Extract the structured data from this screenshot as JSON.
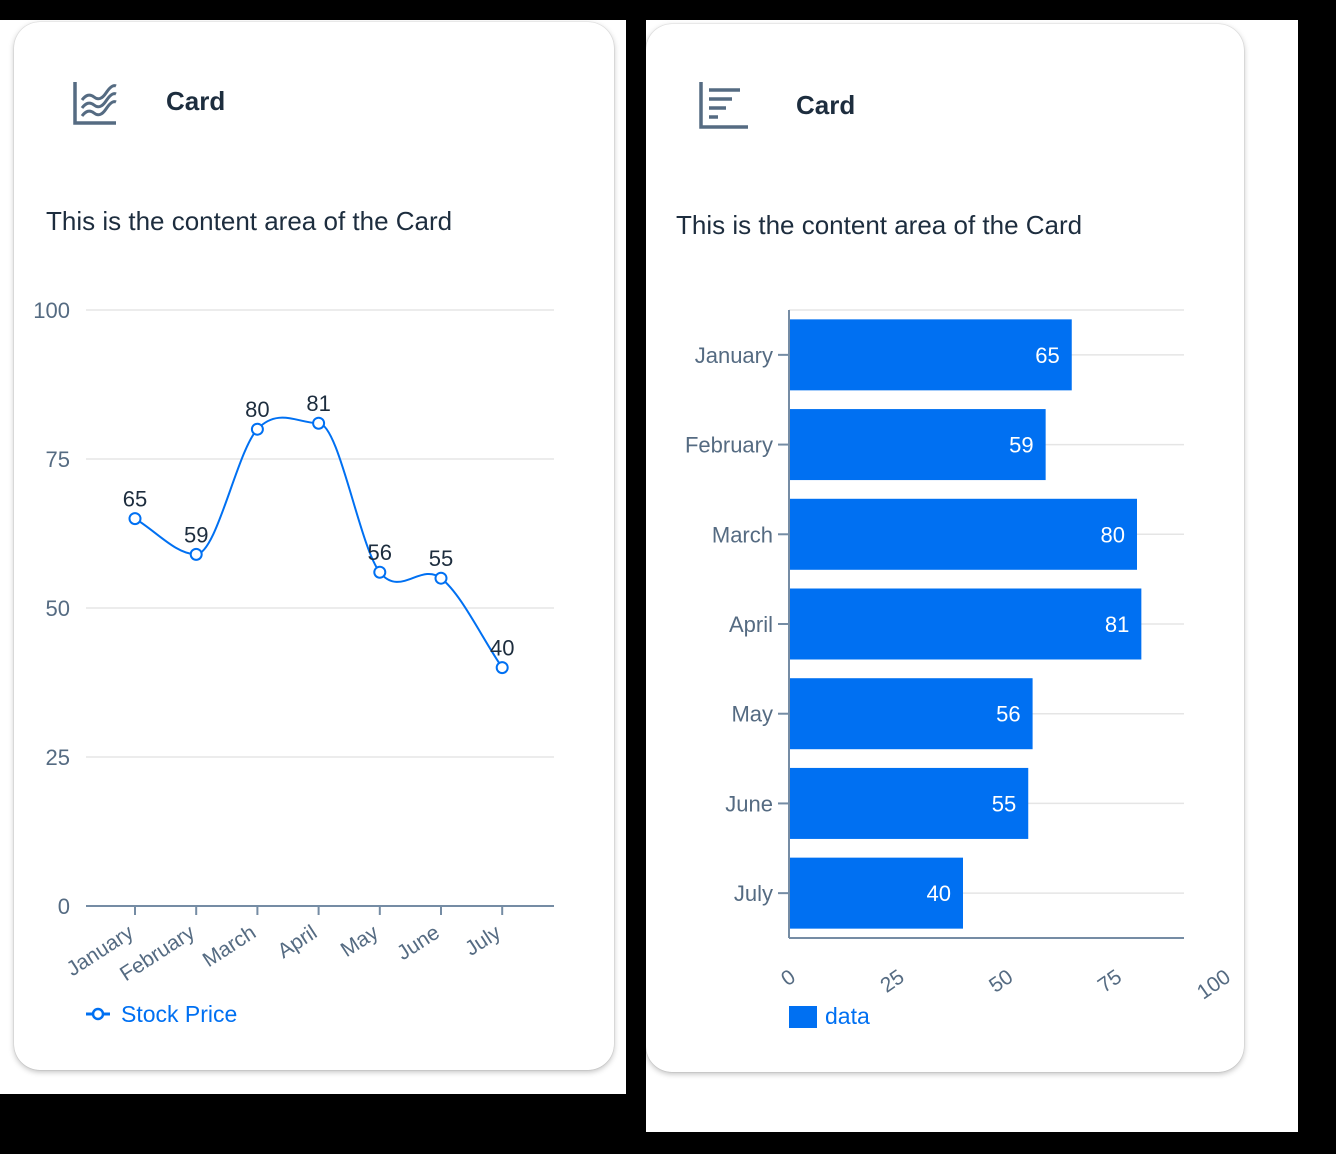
{
  "cards": [
    {
      "title": "Card",
      "content_text": "This is the content area of the Card",
      "header_icon": "line-chart-icon"
    },
    {
      "title": "Card",
      "content_text": "This is the content area of the Card",
      "header_icon": "horizontal-bar-chart-icon"
    }
  ],
  "colors": {
    "accent": "#0070f2",
    "text": "#1d2d3e",
    "axis_text": "#556b82",
    "grid": "#e5e5e5",
    "axis": "#758ca4"
  },
  "chart_data": [
    {
      "type": "line",
      "categories": [
        "January",
        "February",
        "March",
        "April",
        "May",
        "June",
        "July"
      ],
      "series": [
        {
          "name": "Stock Price",
          "values": [
            65,
            59,
            80,
            81,
            56,
            55,
            40
          ]
        }
      ],
      "yticks": [
        "0",
        "25",
        "50",
        "75",
        "100"
      ],
      "ylim": [
        0,
        100
      ],
      "grid": true,
      "legend": "bottom-left",
      "data_labels": true
    },
    {
      "type": "bar",
      "orientation": "horizontal",
      "categories": [
        "January",
        "February",
        "March",
        "April",
        "May",
        "June",
        "July"
      ],
      "series": [
        {
          "name": "data",
          "values": [
            65,
            59,
            80,
            81,
            56,
            55,
            40
          ]
        }
      ],
      "xticks": [
        "0",
        "25",
        "50",
        "75",
        "100"
      ],
      "xlim": [
        0,
        100
      ],
      "grid": true,
      "legend": "bottom-left",
      "data_labels": true
    }
  ]
}
